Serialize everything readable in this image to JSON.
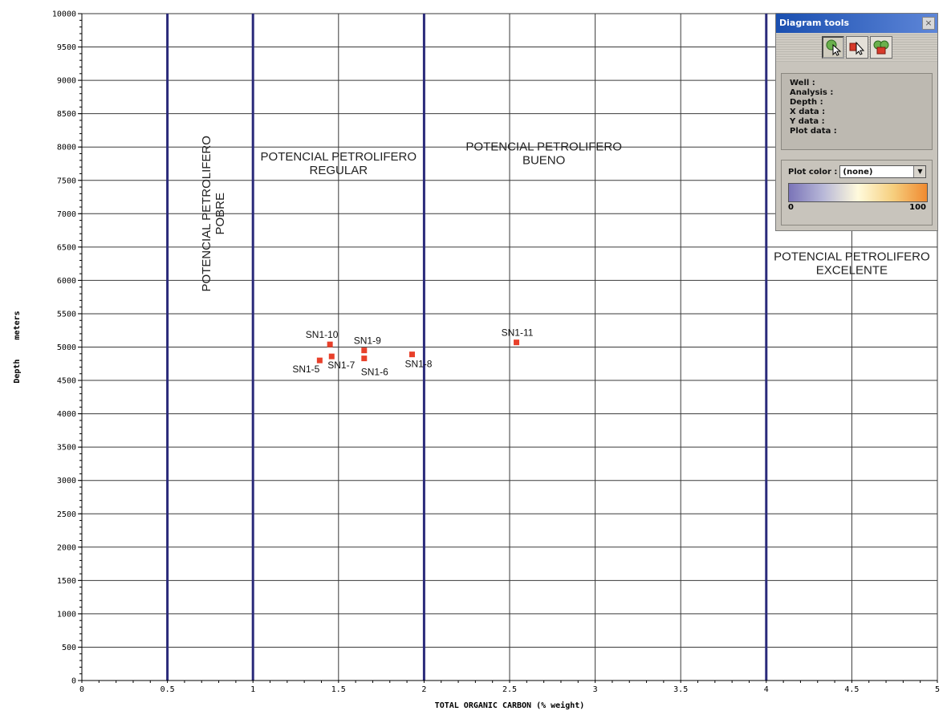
{
  "chart_data": {
    "type": "scatter",
    "title": "",
    "xlabel": "TOTAL ORGANIC CARBON (% weight)",
    "ylabel": "Depth    meters",
    "xlim": [
      0,
      5
    ],
    "ylim": [
      0,
      10000
    ],
    "x_ticks": [
      0,
      0.5,
      1,
      1.5,
      2,
      2.5,
      3,
      3.5,
      4,
      4.5,
      5
    ],
    "x_tick_labels": [
      "0",
      "0.5",
      "1",
      "1.5",
      "2",
      "2.5",
      "3",
      "3.5",
      "4",
      "4.5",
      "5"
    ],
    "y_ticks": [
      0,
      500,
      1000,
      1500,
      2000,
      2500,
      3000,
      3500,
      4000,
      4500,
      5000,
      5500,
      6000,
      6500,
      7000,
      7500,
      8000,
      8500,
      9000,
      9500,
      10000
    ],
    "y_tick_labels": [
      "0",
      "500",
      "1000",
      "1500",
      "2000",
      "2500",
      "3000",
      "3500",
      "4000",
      "4500",
      "5000",
      "5500",
      "6000",
      "6500",
      "7000",
      "7500",
      "8000",
      "8500",
      "9000",
      "9500",
      "10000"
    ],
    "grid": true,
    "marker_color": "#e8402a",
    "boundary_color": "#2a2a7a",
    "boundaries": [
      0.5,
      1,
      2,
      4
    ],
    "points": [
      {
        "label": "SN1-10",
        "x": 1.45,
        "y": 5040
      },
      {
        "label": "SN1-9",
        "x": 1.65,
        "y": 4950
      },
      {
        "label": "SN1-5",
        "x": 1.39,
        "y": 4800
      },
      {
        "label": "SN1-7",
        "x": 1.46,
        "y": 4860
      },
      {
        "label": "SN1-6",
        "x": 1.65,
        "y": 4830
      },
      {
        "label": "SN1-8",
        "x": 1.93,
        "y": 4890
      },
      {
        "label": "SN1-11",
        "x": 2.54,
        "y": 5070
      }
    ],
    "zones": [
      {
        "lines": [
          "POTENCIAL PETROLIFERO",
          "POBRE"
        ],
        "x": 0.75,
        "y": 7000,
        "vertical": true
      },
      {
        "lines": [
          "POTENCIAL PETROLIFERO",
          "REGULAR"
        ],
        "x": 1.5,
        "y": 7800,
        "vertical": false
      },
      {
        "lines": [
          "POTENCIAL PETROLIFERO",
          "BUENO"
        ],
        "x": 2.7,
        "y": 7950,
        "vertical": false
      },
      {
        "lines": [
          "POTENCIAL PETROLIFERO",
          "EXCELENTE"
        ],
        "x": 4.5,
        "y": 6300,
        "vertical": false
      }
    ]
  },
  "tools": {
    "title": "Diagram tools",
    "close": "×",
    "buttons": [
      "select-tool-icon",
      "identify-tool-icon",
      "group-tool-icon"
    ],
    "info": {
      "well": "Well :",
      "analysis": "Analysis :",
      "depth": "Depth :",
      "x_data": "X data :",
      "y_data": "Y data :",
      "plot_data": "Plot data :"
    },
    "plot_color_label": "Plot color :",
    "plot_color_value": "(none)",
    "gradient_min": "0",
    "gradient_max": "100"
  }
}
